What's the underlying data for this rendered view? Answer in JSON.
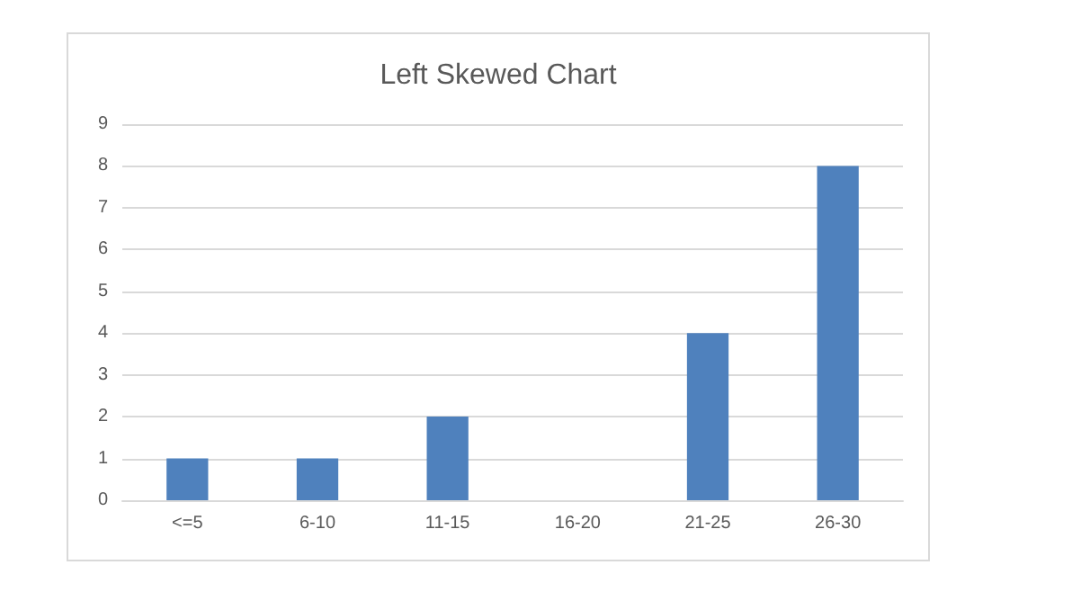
{
  "chart_data": {
    "type": "bar",
    "title": "Left Skewed Chart",
    "categories": [
      "<=5",
      "6-10",
      "11-15",
      "16-20",
      "21-25",
      "26-30"
    ],
    "values": [
      1,
      1,
      2,
      0,
      4,
      8
    ],
    "color": "#4f81bd",
    "ylim": [
      0,
      9
    ],
    "yticks": [
      0,
      1,
      2,
      3,
      4,
      5,
      6,
      7,
      8,
      9
    ],
    "grid": "y"
  }
}
